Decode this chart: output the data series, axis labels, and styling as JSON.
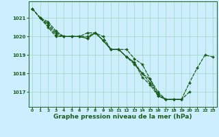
{
  "background_color": "#cceeff",
  "grid_color": "#aaddcc",
  "line_color": "#1a5c1a",
  "marker_color": "#1a5c1a",
  "xlabel": "Graphe pression niveau de la mer (hPa)",
  "xlabel_fontsize": 6.5,
  "xlim": [
    -0.5,
    23.5
  ],
  "ylim": [
    1016.2,
    1021.9
  ],
  "yticks": [
    1017,
    1018,
    1019,
    1020,
    1021
  ],
  "xticks": [
    0,
    1,
    2,
    3,
    4,
    5,
    6,
    7,
    8,
    9,
    10,
    11,
    12,
    13,
    14,
    15,
    16,
    17,
    18,
    19,
    20,
    21,
    22,
    23
  ],
  "lines": [
    [
      1021.5,
      1021.0,
      1020.8,
      1020.3,
      1020.0,
      1020.0,
      1020.0,
      1020.2,
      1020.2,
      1020.0,
      1019.3,
      1019.3,
      1018.9,
      1018.5,
      1018.0,
      1017.7,
      1016.8,
      1016.6,
      1016.6,
      1016.6,
      1017.5,
      1018.3,
      1019.0,
      1018.9
    ],
    [
      1021.5,
      1021.0,
      1020.7,
      1020.2,
      1020.0,
      1020.0,
      1020.0,
      1020.0,
      1020.2,
      1019.8,
      1019.3,
      1019.3,
      1019.3,
      1018.8,
      1018.5,
      1017.7,
      1017.0,
      1016.6,
      1016.6,
      1016.6,
      1017.0,
      null,
      null,
      null
    ],
    [
      1021.5,
      1021.0,
      1020.6,
      1020.1,
      1020.0,
      1020.0,
      1020.0,
      1019.9,
      1020.2,
      1019.8,
      1019.3,
      1019.3,
      1018.9,
      1018.6,
      1018.0,
      1017.5,
      1016.9,
      1016.6,
      1016.6,
      1016.6,
      null,
      null,
      null,
      null
    ],
    [
      1021.5,
      1021.0,
      1020.5,
      1020.0,
      1020.0,
      1020.0,
      1020.0,
      1019.9,
      1020.2,
      1019.8,
      1019.3,
      1019.3,
      1018.9,
      1018.6,
      1017.8,
      1017.4,
      1016.8,
      1016.6,
      1016.6,
      1016.6,
      null,
      null,
      null,
      null
    ]
  ]
}
